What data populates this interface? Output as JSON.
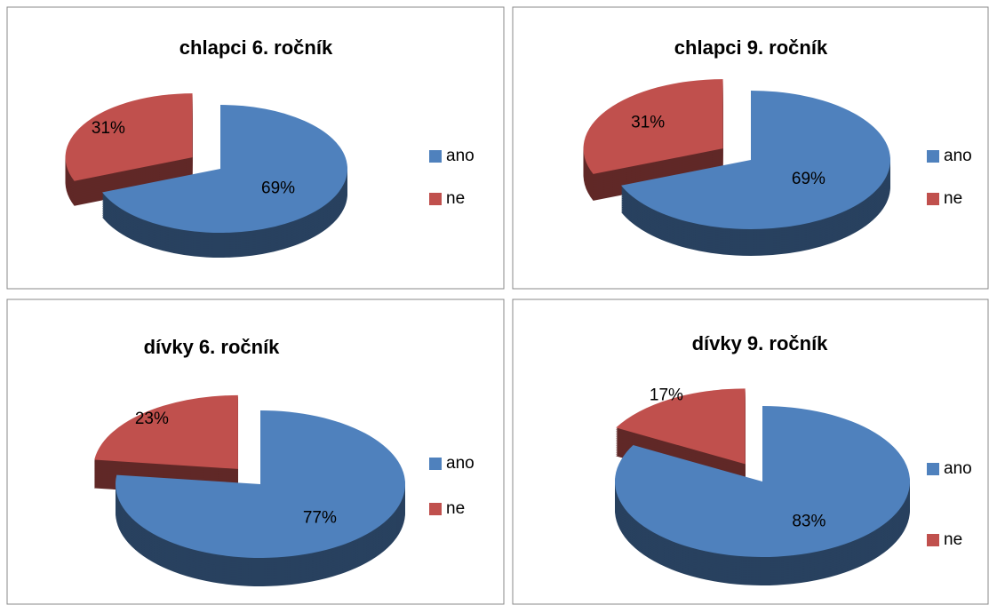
{
  "chart_data": [
    {
      "type": "pie",
      "title": "chlapci 6. ročník",
      "categories": [
        "ano",
        "ne"
      ],
      "values": [
        69,
        31
      ],
      "value_labels": [
        "69%",
        "31%"
      ],
      "colors": [
        "#4f81bd",
        "#c0504d"
      ],
      "legend": "right"
    },
    {
      "type": "pie",
      "title": "chlapci 9. ročník",
      "categories": [
        "ano",
        "ne"
      ],
      "values": [
        69,
        31
      ],
      "value_labels": [
        "69%",
        "31%"
      ],
      "colors": [
        "#4f81bd",
        "#c0504d"
      ],
      "legend": "right"
    },
    {
      "type": "pie",
      "title": "dívky 6. ročník",
      "categories": [
        "ano",
        "ne"
      ],
      "values": [
        77,
        23
      ],
      "value_labels": [
        "77%",
        "23%"
      ],
      "colors": [
        "#4f81bd",
        "#c0504d"
      ],
      "legend": "right"
    },
    {
      "type": "pie",
      "title": "dívky 9. ročník",
      "categories": [
        "ano",
        "ne"
      ],
      "values": [
        83,
        17
      ],
      "value_labels": [
        "83%",
        "17%"
      ],
      "colors": [
        "#4f81bd",
        "#c0504d"
      ],
      "legend": "right"
    }
  ]
}
